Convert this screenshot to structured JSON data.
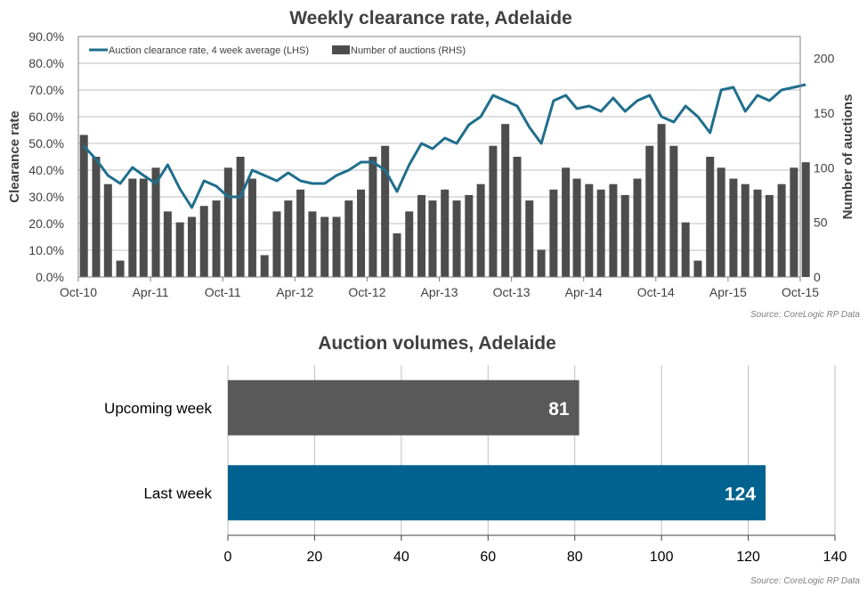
{
  "colors": {
    "line": "#1F6E8C",
    "bar1": "#4D4D4D",
    "bar_upcoming": "#595959",
    "bar_last": "#00628E",
    "grid": "#BFBFBF",
    "title": "#404040",
    "tick": "#404040",
    "source": "#7F7F7F"
  },
  "chart_data": [
    {
      "type": "bar+line",
      "title": "Weekly clearance rate, Adelaide",
      "ylabel_left": "Clearance rate",
      "ylabel_right": "Number of auctions",
      "ylim_left": [
        0,
        90
      ],
      "ylim_right": [
        0,
        220
      ],
      "grid": true,
      "legend_placement": "top-left",
      "y_ticks_left": [
        "0.0%",
        "10.0%",
        "20.0%",
        "30.0%",
        "40.0%",
        "50.0%",
        "60.0%",
        "70.0%",
        "80.0%",
        "90.0%"
      ],
      "y_ticks_right": [
        "0",
        "50",
        "100",
        "150",
        "200"
      ],
      "x_ticks": [
        "Oct-10",
        "Apr-11",
        "Oct-11",
        "Apr-12",
        "Oct-12",
        "Apr-13",
        "Oct-13",
        "Apr-14",
        "Oct-14",
        "Apr-15",
        "Oct-15"
      ],
      "series": [
        {
          "name": "Auction clearance rate, 4 week average (LHS)",
          "type": "line",
          "axis": "left",
          "x_dates": [
            "2010-10",
            "2010-11",
            "2010-12",
            "2011-01",
            "2011-02",
            "2011-03",
            "2011-04",
            "2011-05",
            "2011-06",
            "2011-07",
            "2011-08",
            "2011-09",
            "2011-10",
            "2011-11",
            "2011-12",
            "2012-01",
            "2012-02",
            "2012-03",
            "2012-04",
            "2012-05",
            "2012-06",
            "2012-07",
            "2012-08",
            "2012-09",
            "2012-10",
            "2012-11",
            "2012-12",
            "2013-01",
            "2013-02",
            "2013-03",
            "2013-04",
            "2013-05",
            "2013-06",
            "2013-07",
            "2013-08",
            "2013-09",
            "2013-10",
            "2013-11",
            "2013-12",
            "2014-01",
            "2014-02",
            "2014-03",
            "2014-04",
            "2014-05",
            "2014-06",
            "2014-07",
            "2014-08",
            "2014-09",
            "2014-10",
            "2014-11",
            "2014-12",
            "2015-01",
            "2015-02",
            "2015-03",
            "2015-04",
            "2015-05",
            "2015-06",
            "2015-07",
            "2015-08",
            "2015-09",
            "2015-10"
          ],
          "values": [
            49,
            44,
            38,
            35,
            41,
            38,
            35,
            42,
            33,
            26,
            36,
            34,
            30,
            30,
            40,
            38,
            36,
            39,
            36,
            35,
            35,
            38,
            40,
            43,
            43,
            40,
            32,
            42,
            50,
            48,
            52,
            50,
            57,
            60,
            68,
            66,
            64,
            56,
            50,
            66,
            68,
            63,
            64,
            62,
            67,
            62,
            66,
            68,
            60,
            58,
            64,
            60,
            54,
            70,
            71,
            62,
            68,
            66,
            70,
            71,
            72
          ]
        },
        {
          "name": "Number of auctions (RHS)",
          "type": "bar",
          "axis": "right",
          "x_dates": [
            "2010-10",
            "2010-11",
            "2010-12",
            "2011-01",
            "2011-02",
            "2011-03",
            "2011-04",
            "2011-05",
            "2011-06",
            "2011-07",
            "2011-08",
            "2011-09",
            "2011-10",
            "2011-11",
            "2011-12",
            "2012-01",
            "2012-02",
            "2012-03",
            "2012-04",
            "2012-05",
            "2012-06",
            "2012-07",
            "2012-08",
            "2012-09",
            "2012-10",
            "2012-11",
            "2012-12",
            "2013-01",
            "2013-02",
            "2013-03",
            "2013-04",
            "2013-05",
            "2013-06",
            "2013-07",
            "2013-08",
            "2013-09",
            "2013-10",
            "2013-11",
            "2013-12",
            "2014-01",
            "2014-02",
            "2014-03",
            "2014-04",
            "2014-05",
            "2014-06",
            "2014-07",
            "2014-08",
            "2014-09",
            "2014-10",
            "2014-11",
            "2014-12",
            "2015-01",
            "2015-02",
            "2015-03",
            "2015-04",
            "2015-05",
            "2015-06",
            "2015-07",
            "2015-08",
            "2015-09",
            "2015-10"
          ],
          "values": [
            130,
            110,
            85,
            15,
            90,
            90,
            100,
            60,
            50,
            55,
            65,
            70,
            100,
            110,
            90,
            20,
            60,
            70,
            80,
            60,
            55,
            55,
            70,
            80,
            110,
            120,
            40,
            60,
            75,
            70,
            80,
            70,
            75,
            85,
            120,
            140,
            110,
            70,
            25,
            80,
            100,
            90,
            85,
            80,
            85,
            75,
            90,
            120,
            140,
            120,
            50,
            15,
            110,
            100,
            90,
            85,
            80,
            75,
            85,
            100,
            105
          ]
        }
      ],
      "source": "Source: CoreLogic  RP Data"
    },
    {
      "type": "bar",
      "orientation": "horizontal",
      "title": "Auction volumes, Adelaide",
      "categories": [
        "Upcoming week",
        "Last week"
      ],
      "values": [
        81,
        124
      ],
      "value_labels": [
        "81",
        "124"
      ],
      "xlim": [
        0,
        140
      ],
      "x_ticks": [
        "0",
        "20",
        "40",
        "60",
        "80",
        "100",
        "120",
        "140"
      ],
      "grid": true,
      "source": "Source: CoreLogic  RP Data"
    }
  ]
}
